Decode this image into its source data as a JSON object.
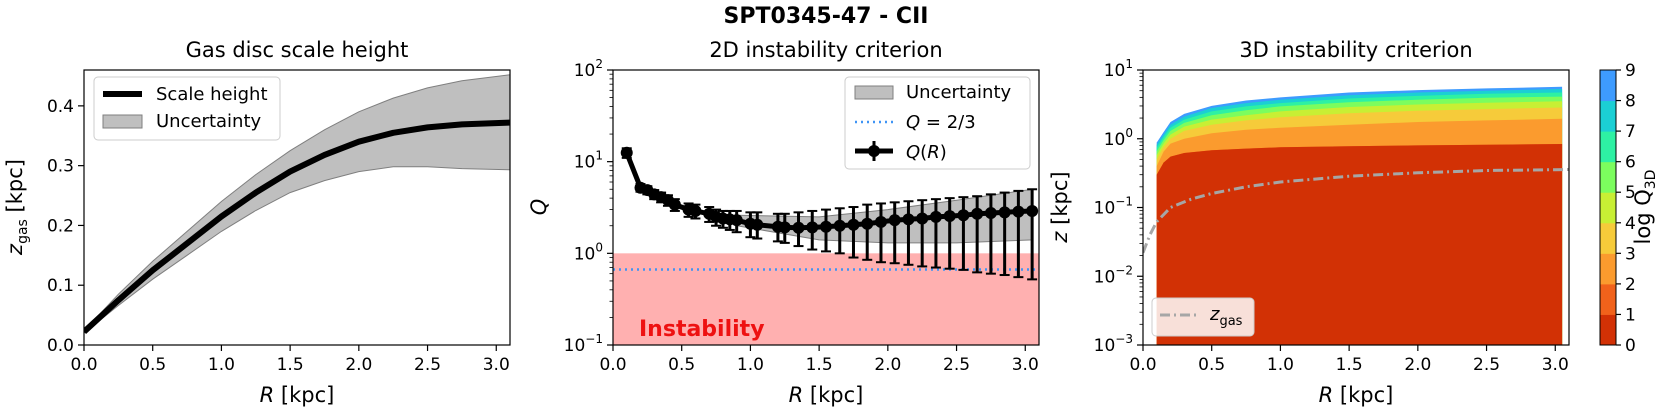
{
  "suptitle": "SPT0345-47 - CII",
  "chart_data": [
    {
      "type": "line",
      "title": "Gas disc scale height",
      "xlabel": "R [kpc]",
      "ylabel": "z_gas [kpc]",
      "xlim": [
        0.0,
        3.1
      ],
      "ylim": [
        0.0,
        0.46
      ],
      "xticks": [
        0.0,
        0.5,
        1.0,
        1.5,
        2.0,
        2.5,
        3.0
      ],
      "xtick_labels": [
        "0.0",
        "0.5",
        "1.0",
        "1.5",
        "2.0",
        "2.5",
        "3.0"
      ],
      "yticks": [
        0.0,
        0.1,
        0.2,
        0.3,
        0.4
      ],
      "ytick_labels": [
        "0.0",
        "0.1",
        "0.2",
        "0.3",
        "0.4"
      ],
      "legend": {
        "position": "top-left",
        "entries": [
          "Scale height",
          "Uncertainty"
        ]
      },
      "series": [
        {
          "name": "Scale height",
          "x": [
            0.0,
            0.25,
            0.5,
            0.75,
            1.0,
            1.25,
            1.5,
            1.75,
            2.0,
            2.25,
            2.5,
            2.75,
            3.1
          ],
          "values": [
            0.022,
            0.075,
            0.125,
            0.17,
            0.215,
            0.255,
            0.29,
            0.318,
            0.34,
            0.355,
            0.364,
            0.369,
            0.372
          ]
        },
        {
          "name": "Uncertainty upper",
          "x": [
            0.0,
            0.25,
            0.5,
            0.75,
            1.0,
            1.25,
            1.5,
            1.75,
            2.0,
            2.25,
            2.5,
            2.75,
            3.1
          ],
          "values": [
            0.024,
            0.085,
            0.14,
            0.19,
            0.24,
            0.285,
            0.325,
            0.36,
            0.39,
            0.413,
            0.43,
            0.442,
            0.452
          ]
        },
        {
          "name": "Uncertainty lower",
          "x": [
            0.0,
            0.25,
            0.5,
            0.75,
            1.0,
            1.25,
            1.5,
            1.75,
            2.0,
            2.25,
            2.5,
            2.75,
            3.1
          ],
          "values": [
            0.02,
            0.066,
            0.11,
            0.15,
            0.19,
            0.225,
            0.255,
            0.275,
            0.29,
            0.298,
            0.298,
            0.295,
            0.293
          ]
        }
      ]
    },
    {
      "type": "line",
      "title": "2D instability criterion",
      "xlabel": "R [kpc]",
      "ylabel": "Q",
      "xscale": "linear",
      "yscale": "log",
      "xlim": [
        0.0,
        3.1
      ],
      "ylim": [
        0.1,
        100
      ],
      "xticks": [
        0.0,
        0.5,
        1.0,
        1.5,
        2.0,
        2.5,
        3.0
      ],
      "xtick_labels": [
        "0.0",
        "0.5",
        "1.0",
        "1.5",
        "2.0",
        "2.5",
        "3.0"
      ],
      "yticks": [
        0.1,
        1,
        10,
        100
      ],
      "ytick_bases": [
        "10",
        "10",
        "10",
        "10"
      ],
      "ytick_exps": [
        "−1",
        "0",
        "1",
        "2"
      ],
      "legend": {
        "position": "top-right",
        "entries": [
          "Uncertainty",
          "Q = 2/3",
          "Q(R)"
        ]
      },
      "annotation": "Instability",
      "instability_region": [
        0.1,
        1.0
      ],
      "threshold": 0.6667,
      "series": [
        {
          "name": "Q(R)",
          "x": [
            0.1,
            0.2,
            0.25,
            0.3,
            0.35,
            0.4,
            0.45,
            0.55,
            0.6,
            0.7,
            0.75,
            0.8,
            0.85,
            0.9,
            1.0,
            1.05,
            1.2,
            1.25,
            1.35,
            1.45,
            1.55,
            1.65,
            1.75,
            1.85,
            1.95,
            2.05,
            2.15,
            2.25,
            2.35,
            2.45,
            2.55,
            2.65,
            2.75,
            2.85,
            2.95,
            3.05
          ],
          "values": [
            12.5,
            5.2,
            4.9,
            4.4,
            4.1,
            3.8,
            3.4,
            3.0,
            2.9,
            2.7,
            2.5,
            2.4,
            2.35,
            2.3,
            2.1,
            2.05,
            1.95,
            1.92,
            1.9,
            1.92,
            1.95,
            2.0,
            2.05,
            2.1,
            2.2,
            2.3,
            2.35,
            2.4,
            2.5,
            2.55,
            2.6,
            2.7,
            2.75,
            2.8,
            2.85,
            2.9
          ],
          "err_low": [
            11.0,
            4.7,
            4.4,
            3.9,
            3.6,
            3.3,
            2.9,
            2.5,
            2.4,
            2.2,
            2.0,
            1.9,
            1.8,
            1.7,
            1.5,
            1.45,
            1.35,
            1.3,
            1.2,
            1.1,
            1.05,
            1.0,
            0.9,
            0.85,
            0.8,
            0.78,
            0.75,
            0.72,
            0.7,
            0.68,
            0.66,
            0.62,
            0.6,
            0.58,
            0.55,
            0.52
          ],
          "err_high": [
            14.0,
            5.7,
            5.4,
            4.9,
            4.6,
            4.3,
            3.9,
            3.5,
            3.4,
            3.2,
            3.0,
            2.9,
            2.9,
            2.9,
            2.8,
            2.8,
            2.7,
            2.7,
            2.8,
            2.9,
            3.0,
            3.1,
            3.2,
            3.4,
            3.5,
            3.6,
            3.7,
            3.8,
            3.9,
            4.0,
            4.1,
            4.2,
            4.4,
            4.6,
            4.8,
            5.0
          ]
        },
        {
          "name": "Uncertainty upper",
          "x": [
            0.9,
            1.5,
            2.0,
            2.5,
            3.05
          ],
          "values": [
            2.6,
            2.5,
            3.0,
            3.8,
            5.0
          ]
        },
        {
          "name": "Uncertainty lower",
          "x": [
            0.9,
            1.5,
            2.0,
            2.5,
            3.05
          ],
          "values": [
            2.0,
            1.4,
            1.3,
            1.3,
            1.4
          ]
        }
      ]
    },
    {
      "type": "heatmap",
      "title": "3D instability criterion",
      "xlabel": "R [kpc]",
      "ylabel": "z [kpc]",
      "yscale": "log",
      "xlim": [
        0.0,
        3.1
      ],
      "ylim": [
        0.001,
        10
      ],
      "xticks": [
        0.0,
        0.5,
        1.0,
        1.5,
        2.0,
        2.5,
        3.0
      ],
      "xtick_labels": [
        "0.0",
        "0.5",
        "1.0",
        "1.5",
        "2.0",
        "2.5",
        "3.0"
      ],
      "yticks": [
        0.001,
        0.01,
        0.1,
        1,
        10
      ],
      "ytick_bases": [
        "10",
        "10",
        "10",
        "10",
        "10"
      ],
      "ytick_exps": [
        "−3",
        "−2",
        "−1",
        "0",
        "1"
      ],
      "colorbar": {
        "label": "log Q",
        "label_sub": "3D",
        "levels": [
          0,
          1,
          2,
          3,
          4,
          5,
          6,
          7,
          8,
          9
        ],
        "tick_labels": [
          "0",
          "1",
          "2",
          "3",
          "4",
          "5",
          "6",
          "7",
          "8",
          "9"
        ],
        "colors": [
          "#d23105",
          "#f1621b",
          "#fb9b2e",
          "#f6cb3a",
          "#c8ef34",
          "#7cfd5e",
          "#2ef1a3",
          "#1bcfd4",
          "#3e9bfe",
          "#4469d9"
        ]
      },
      "contour_bounds": {
        "R": [
          0.1,
          0.15,
          0.2,
          0.3,
          0.5,
          0.75,
          1.0,
          1.5,
          2.0,
          2.5,
          3.05
        ],
        "level_tops": [
          [
            0.3,
            0.45,
            0.55,
            0.62,
            0.68,
            0.72,
            0.75,
            0.78,
            0.8,
            0.82,
            0.84
          ],
          [
            0.4,
            0.65,
            0.85,
            1.0,
            1.2,
            1.35,
            1.45,
            1.6,
            1.75,
            1.85,
            1.95
          ],
          [
            0.5,
            0.75,
            1.0,
            1.3,
            1.6,
            1.85,
            2.05,
            2.35,
            2.55,
            2.7,
            2.85
          ],
          [
            0.58,
            0.85,
            1.15,
            1.5,
            1.9,
            2.2,
            2.5,
            2.9,
            3.15,
            3.35,
            3.5
          ],
          [
            0.66,
            0.95,
            1.3,
            1.7,
            2.2,
            2.6,
            2.95,
            3.4,
            3.7,
            3.95,
            4.1
          ],
          [
            0.74,
            1.05,
            1.45,
            1.9,
            2.5,
            2.95,
            3.3,
            3.85,
            4.2,
            4.5,
            4.7
          ],
          [
            0.82,
            1.15,
            1.6,
            2.1,
            2.8,
            3.3,
            3.7,
            4.3,
            4.7,
            5.0,
            5.3
          ],
          [
            0.88,
            1.25,
            1.75,
            2.3,
            3.0,
            3.6,
            4.0,
            4.7,
            5.1,
            5.4,
            5.7
          ]
        ]
      },
      "legend": {
        "position": "bottom-left",
        "entries": [
          "z_gas"
        ]
      },
      "series": [
        {
          "name": "z_gas",
          "x": [
            0.0,
            0.05,
            0.1,
            0.2,
            0.35,
            0.5,
            0.75,
            1.0,
            1.5,
            2.0,
            2.5,
            3.0,
            3.1
          ],
          "values": [
            0.022,
            0.04,
            0.062,
            0.1,
            0.132,
            0.16,
            0.2,
            0.235,
            0.285,
            0.32,
            0.345,
            0.355,
            0.357
          ]
        }
      ]
    }
  ]
}
